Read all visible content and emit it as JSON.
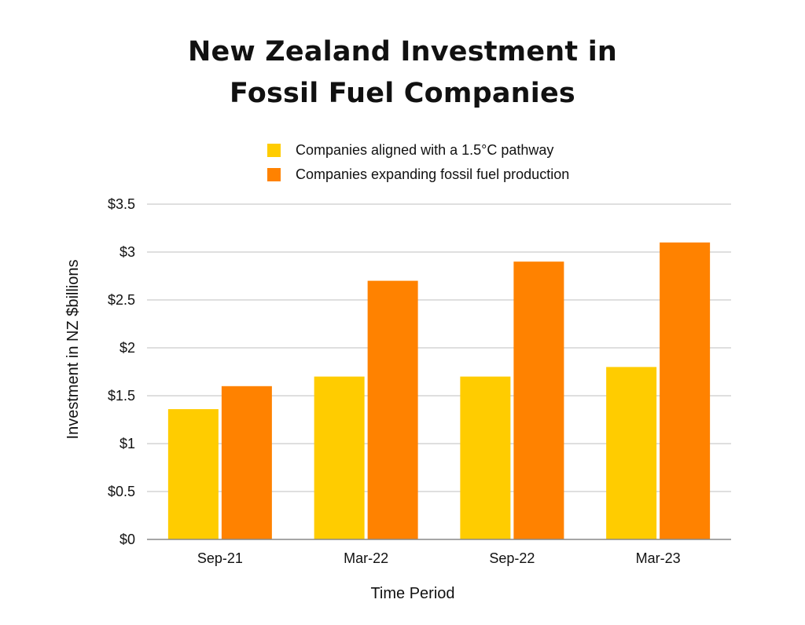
{
  "chart_data": {
    "type": "bar",
    "title_lines": [
      "New Zealand Investment in",
      "Fossil Fuel Companies"
    ],
    "xlabel": "Time Period",
    "ylabel": "Investment in NZ $billions",
    "categories": [
      "Sep-21",
      "Mar-22",
      "Sep-22",
      "Mar-23"
    ],
    "series": [
      {
        "name": "Companies aligned with a 1.5°C pathway",
        "color": "#FFCC00",
        "values": [
          1.36,
          1.7,
          1.7,
          1.8
        ]
      },
      {
        "name": "Companies expanding fossil fuel production",
        "color": "#FF8200",
        "values": [
          1.6,
          2.7,
          2.9,
          3.1
        ]
      }
    ],
    "ylim": [
      0,
      3.5
    ],
    "yticks": [
      0,
      0.5,
      1,
      1.5,
      2,
      2.5,
      3,
      3.5
    ],
    "ytick_labels": [
      "$0",
      "$0.5",
      "$1",
      "$1.5",
      "$2",
      "$2.5",
      "$3",
      "$3.5"
    ],
    "grid": true,
    "legend_position": "top-center"
  }
}
